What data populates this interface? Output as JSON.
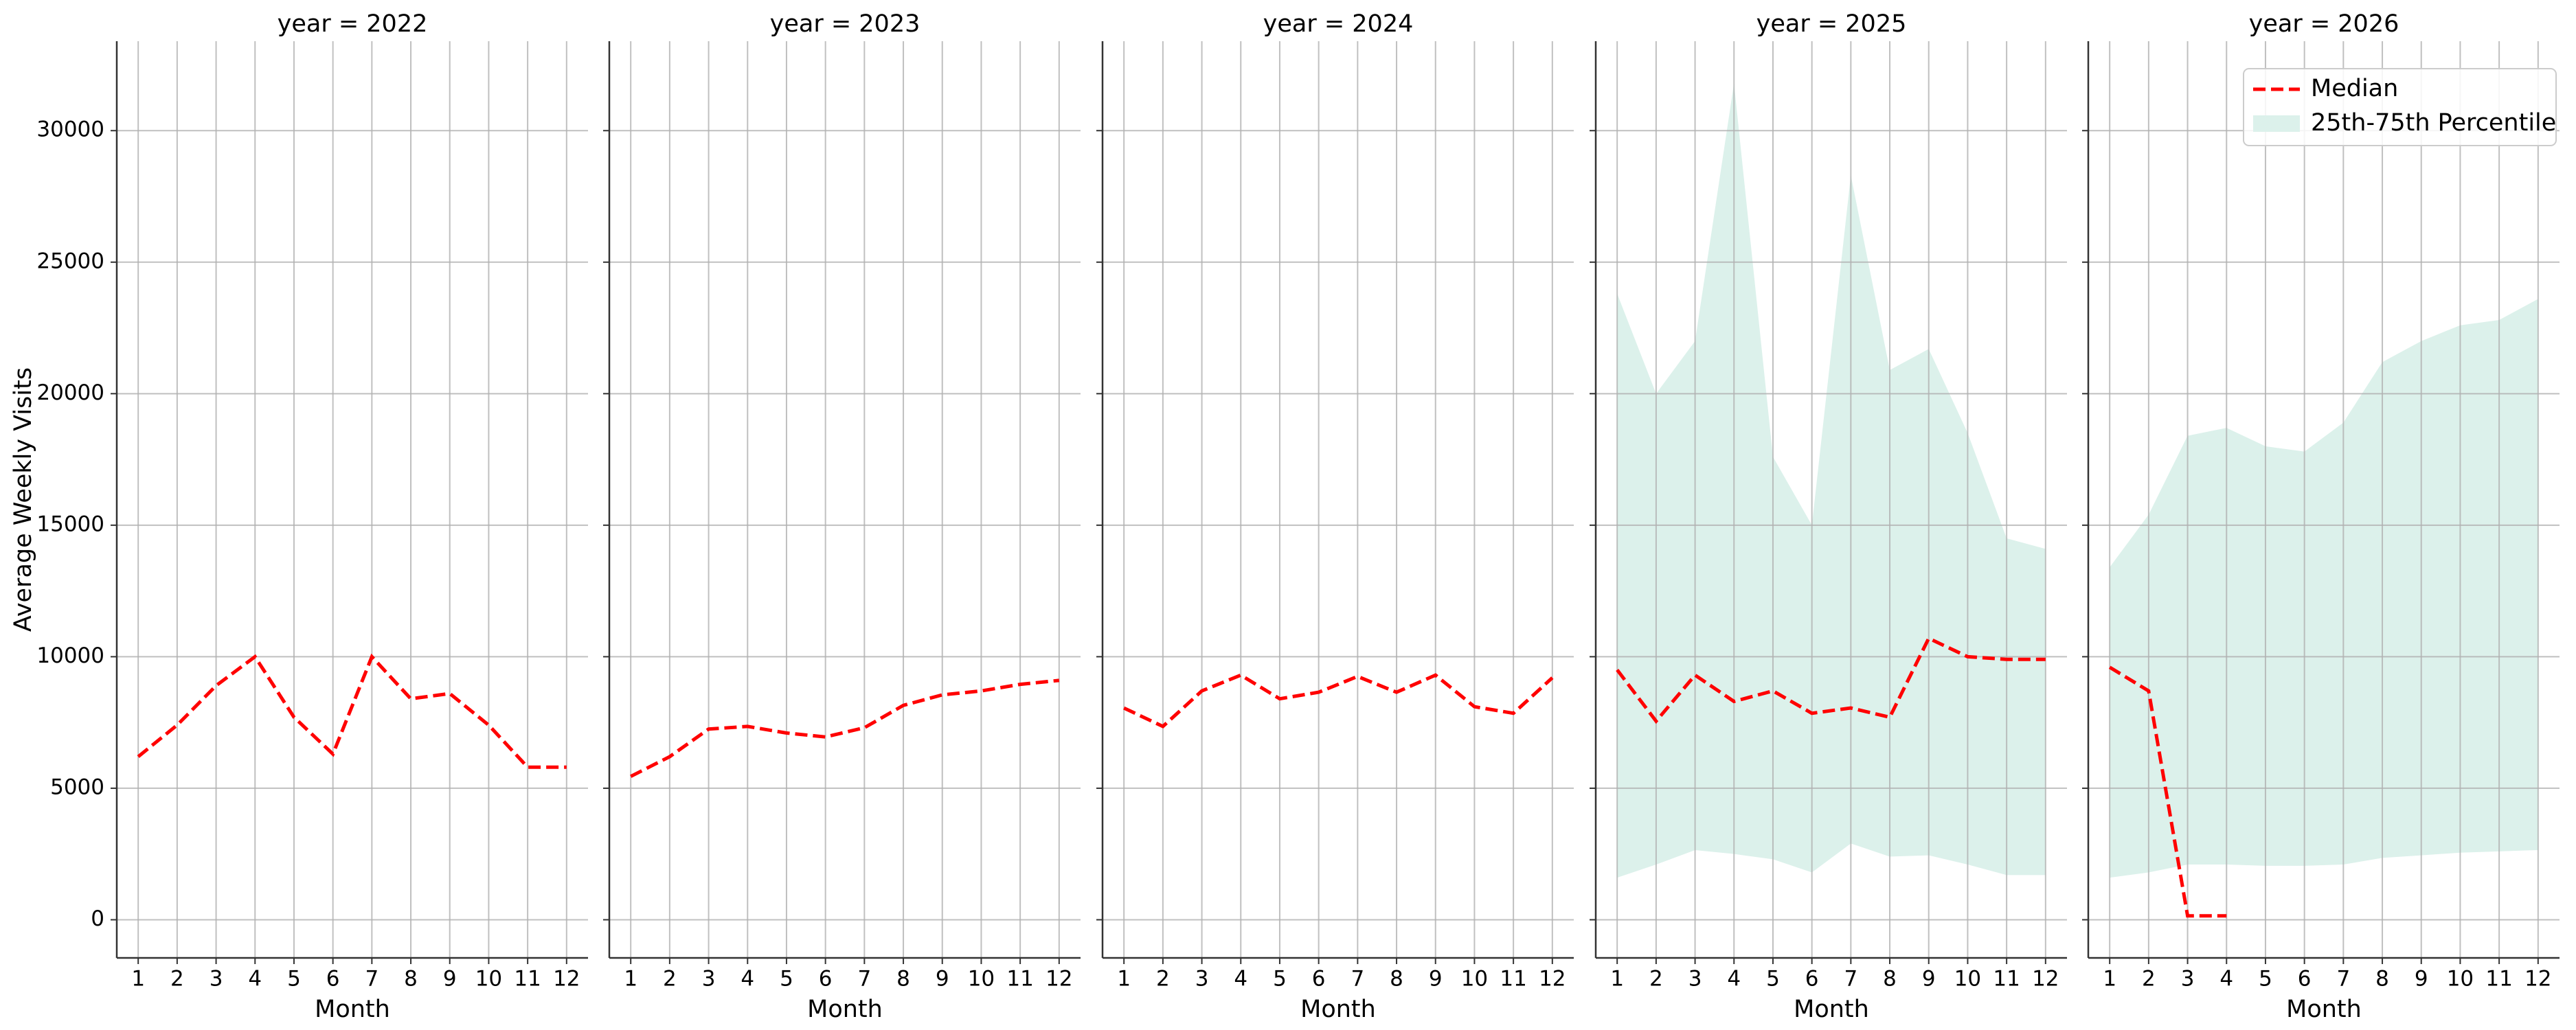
{
  "chart_data": [
    {
      "type": "line",
      "title": "year = 2022",
      "xlabel": "Month",
      "ylabel": "Average Weekly Visits",
      "x": [
        1,
        2,
        3,
        4,
        5,
        6,
        7,
        8,
        9,
        10,
        11,
        12
      ],
      "xlim": [
        0.45,
        12.55
      ],
      "ylim": [
        -1450,
        33400
      ],
      "yticks": [
        0,
        5000,
        10000,
        15000,
        20000,
        25000,
        30000
      ],
      "grid": true,
      "series": [
        {
          "name": "Median",
          "color": "#ff0000",
          "values": [
            6200,
            7400,
            8900,
            10000,
            7700,
            6300,
            10000,
            8400,
            8600,
            7400,
            5800,
            5800
          ]
        }
      ]
    },
    {
      "type": "line",
      "title": "year = 2023",
      "xlabel": "Month",
      "x": [
        1,
        2,
        3,
        4,
        5,
        6,
        7,
        8,
        9,
        10,
        11,
        12
      ],
      "xlim": [
        0.45,
        12.55
      ],
      "ylim": [
        -1450,
        33400
      ],
      "grid": true,
      "series": [
        {
          "name": "Median",
          "color": "#ff0000",
          "values": [
            5450,
            6200,
            7250,
            7350,
            7100,
            6950,
            7300,
            8150,
            8550,
            8700,
            8950,
            9100
          ]
        }
      ]
    },
    {
      "type": "line",
      "title": "year = 2024",
      "xlabel": "Month",
      "x": [
        1,
        2,
        3,
        4,
        5,
        6,
        7,
        8,
        9,
        10,
        11,
        12
      ],
      "xlim": [
        0.45,
        12.55
      ],
      "ylim": [
        -1450,
        33400
      ],
      "grid": true,
      "series": [
        {
          "name": "Median",
          "color": "#ff0000",
          "values": [
            8050,
            7350,
            8700,
            9300,
            8400,
            8650,
            9250,
            8650,
            9300,
            8100,
            7850,
            9200
          ]
        }
      ]
    },
    {
      "type": "line",
      "title": "year = 2025",
      "xlabel": "Month",
      "x": [
        1,
        2,
        3,
        4,
        5,
        6,
        7,
        8,
        9,
        10,
        11,
        12
      ],
      "xlim": [
        0.45,
        12.55
      ],
      "ylim": [
        -1450,
        33400
      ],
      "grid": true,
      "series": [
        {
          "name": "Median",
          "color": "#ff0000",
          "values": [
            9500,
            7550,
            9300,
            8300,
            8700,
            7850,
            8050,
            7700,
            10700,
            10000,
            9900,
            9900
          ]
        },
        {
          "name": "25th-75th Percentile",
          "color": "#dcf1eb",
          "lower": [
            1600,
            2100,
            2650,
            2500,
            2300,
            1800,
            2900,
            2400,
            2450,
            2100,
            1700,
            1700
          ],
          "upper": [
            23800,
            20000,
            22000,
            31800,
            17600,
            15000,
            28300,
            20900,
            21700,
            18500,
            14500,
            14100
          ]
        }
      ]
    },
    {
      "type": "line",
      "title": "year = 2026",
      "xlabel": "Month",
      "legend": "upper right",
      "x": [
        1,
        2,
        3,
        4,
        5,
        6,
        7,
        8,
        9,
        10,
        11,
        12
      ],
      "xlim": [
        0.45,
        12.55
      ],
      "ylim": [
        -1450,
        33400
      ],
      "grid": true,
      "series": [
        {
          "name": "Median",
          "color": "#ff0000",
          "values": [
            9600,
            8700,
            150,
            150,
            null,
            null,
            null,
            null,
            null,
            null,
            null,
            null
          ]
        },
        {
          "name": "25th-75th Percentile",
          "color": "#dcf1eb",
          "lower": [
            1600,
            1800,
            2100,
            2100,
            2050,
            2050,
            2100,
            2350,
            2450,
            2550,
            2600,
            2650
          ],
          "upper": [
            13400,
            15400,
            18400,
            18700,
            18000,
            17800,
            18900,
            21200,
            22000,
            22600,
            22800,
            23600
          ]
        }
      ]
    }
  ]
}
